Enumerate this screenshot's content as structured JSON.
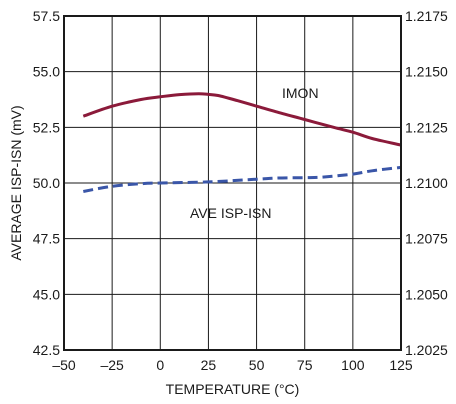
{
  "chart_data": {
    "type": "line",
    "title": "",
    "xlabel": "TEMPERATURE (°C)",
    "ylabel": "AVERAGE ISP-ISN (mV)",
    "xlim": [
      -50,
      125
    ],
    "ylim": [
      42.5,
      57.5
    ],
    "y2lim": [
      1.2025,
      1.2175
    ],
    "x_ticks": [
      "–50",
      "–25",
      "0",
      "25",
      "50",
      "75",
      "100",
      "125"
    ],
    "y_ticks": [
      "42.5",
      "45.0",
      "47.5",
      "50.0",
      "52.5",
      "55.0",
      "57.5"
    ],
    "y2_ticks": [
      "1.2025",
      "1.2050",
      "1.2075",
      "1.2100",
      "1.2125",
      "1.2150",
      "1.2175"
    ],
    "grid": true,
    "series": [
      {
        "name": "IMON",
        "axis": "right",
        "color": "#8b1a3a",
        "style": "solid",
        "x": [
          -40,
          -25,
          -10,
          0,
          10,
          20,
          25,
          30,
          40,
          50,
          60,
          75,
          90,
          100,
          110,
          125
        ],
        "y": [
          1.213,
          1.21345,
          1.21375,
          1.21387,
          1.21397,
          1.21401,
          1.21398,
          1.21393,
          1.2137,
          1.21345,
          1.2132,
          1.21285,
          1.2125,
          1.21228,
          1.212,
          1.2117
        ]
      },
      {
        "name": "AVE ISP-ISN",
        "axis": "left",
        "color": "#3a56a8",
        "style": "dashed",
        "x": [
          -40,
          -25,
          -10,
          0,
          25,
          50,
          60,
          75,
          85,
          100,
          110,
          125
        ],
        "y": [
          49.62,
          49.85,
          49.97,
          50.0,
          50.05,
          50.17,
          50.22,
          50.24,
          50.27,
          50.4,
          50.55,
          50.7
        ]
      }
    ]
  }
}
